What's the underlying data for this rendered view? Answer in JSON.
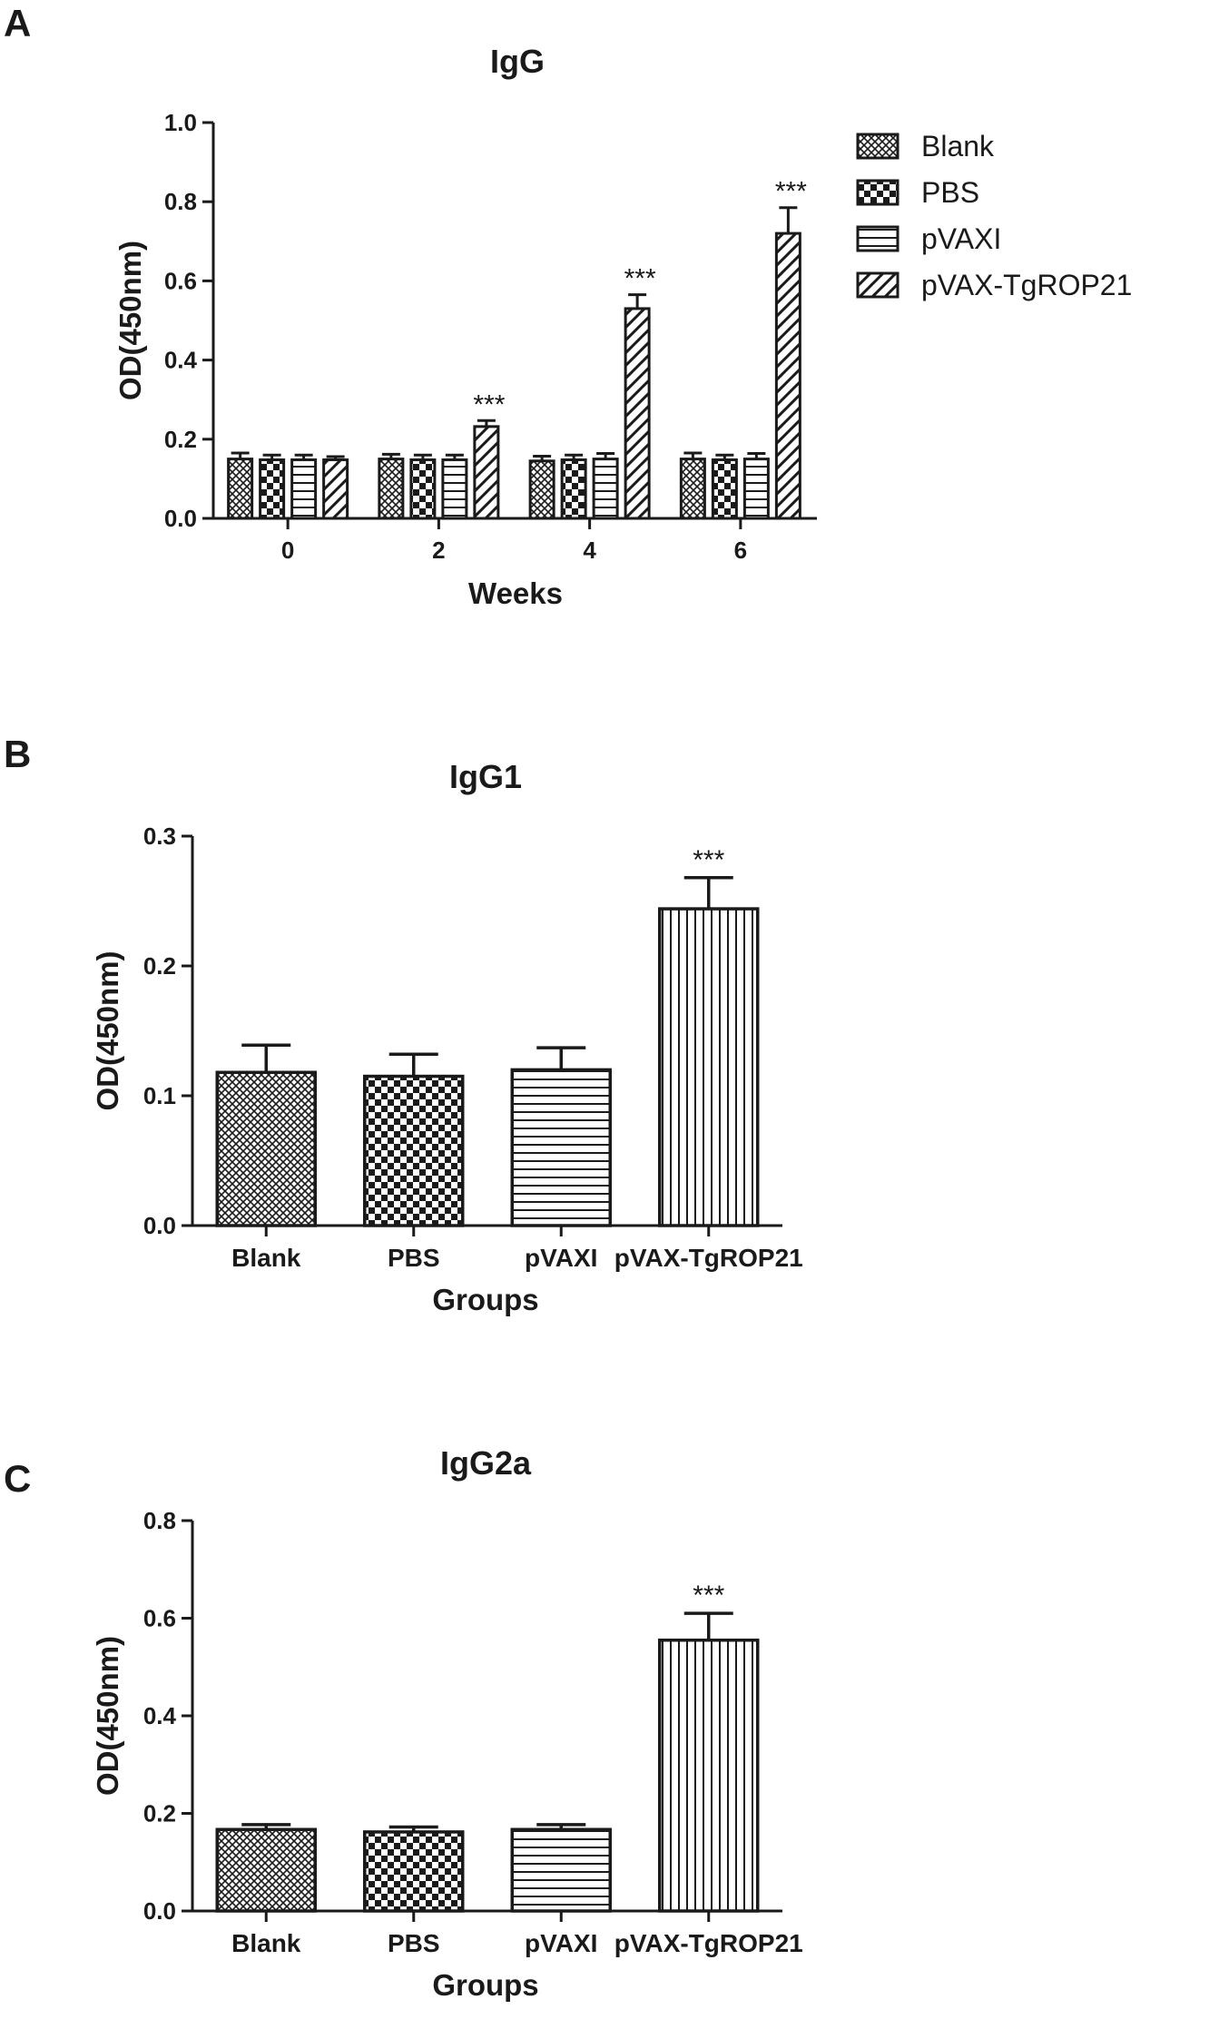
{
  "panel_labels": [
    "A",
    "B",
    "C"
  ],
  "patterns": {
    "Blank": "crosshatch",
    "PBS": "checker",
    "pVAXI": "horizontal",
    "pVAX-TgROP21": "diagonal",
    "pVAX-TgROP21_panels_bc": "vertical"
  },
  "colors": {
    "ink": "#1a1a1a",
    "background": "#ffffff"
  },
  "chart_data": [
    {
      "type": "bar",
      "title": "IgG",
      "xlabel": "Weeks",
      "ylabel": "OD(450nm)",
      "ylim": [
        0,
        1.0
      ],
      "yticks": [
        "0.0",
        "0.2",
        "0.4",
        "0.6",
        "0.8",
        "1.0"
      ],
      "categories": [
        "0",
        "2",
        "4",
        "6"
      ],
      "legend_position": "top-right",
      "series": [
        {
          "name": "Blank",
          "values": [
            0.15,
            0.15,
            0.145,
            0.15
          ],
          "errors": [
            0.015,
            0.012,
            0.012,
            0.015
          ]
        },
        {
          "name": "PBS",
          "values": [
            0.148,
            0.148,
            0.148,
            0.148
          ],
          "errors": [
            0.012,
            0.012,
            0.012,
            0.012
          ]
        },
        {
          "name": "pVAXI",
          "values": [
            0.148,
            0.148,
            0.15,
            0.15
          ],
          "errors": [
            0.012,
            0.012,
            0.014,
            0.014
          ]
        },
        {
          "name": "pVAX-TgROP21",
          "values": [
            0.148,
            0.232,
            0.53,
            0.72
          ],
          "errors": [
            0.008,
            0.015,
            0.035,
            0.065
          ],
          "significance": [
            "",
            "***",
            "***",
            "***"
          ]
        }
      ]
    },
    {
      "type": "bar",
      "title": "IgG1",
      "xlabel": "Groups",
      "ylabel": "OD(450nm)",
      "ylim": [
        0,
        0.3
      ],
      "yticks": [
        "0.0",
        "0.1",
        "0.2",
        "0.3"
      ],
      "categories": [
        "Blank",
        "PBS",
        "pVAXI",
        "pVAX-TgROP21"
      ],
      "values": [
        0.118,
        0.115,
        0.12,
        0.244
      ],
      "errors": [
        0.021,
        0.017,
        0.017,
        0.024
      ],
      "significance": [
        "",
        "",
        "",
        "***"
      ]
    },
    {
      "type": "bar",
      "title": "IgG2a",
      "xlabel": "Groups",
      "ylabel": "OD(450nm)",
      "ylim": [
        0,
        0.8
      ],
      "yticks": [
        "0.0",
        "0.2",
        "0.4",
        "0.6",
        "0.8"
      ],
      "categories": [
        "Blank",
        "PBS",
        "pVAXI",
        "pVAX-TgROP21"
      ],
      "values": [
        0.167,
        0.162,
        0.167,
        0.555
      ],
      "errors": [
        0.01,
        0.01,
        0.01,
        0.055
      ],
      "significance": [
        "",
        "",
        "",
        "***"
      ]
    }
  ]
}
